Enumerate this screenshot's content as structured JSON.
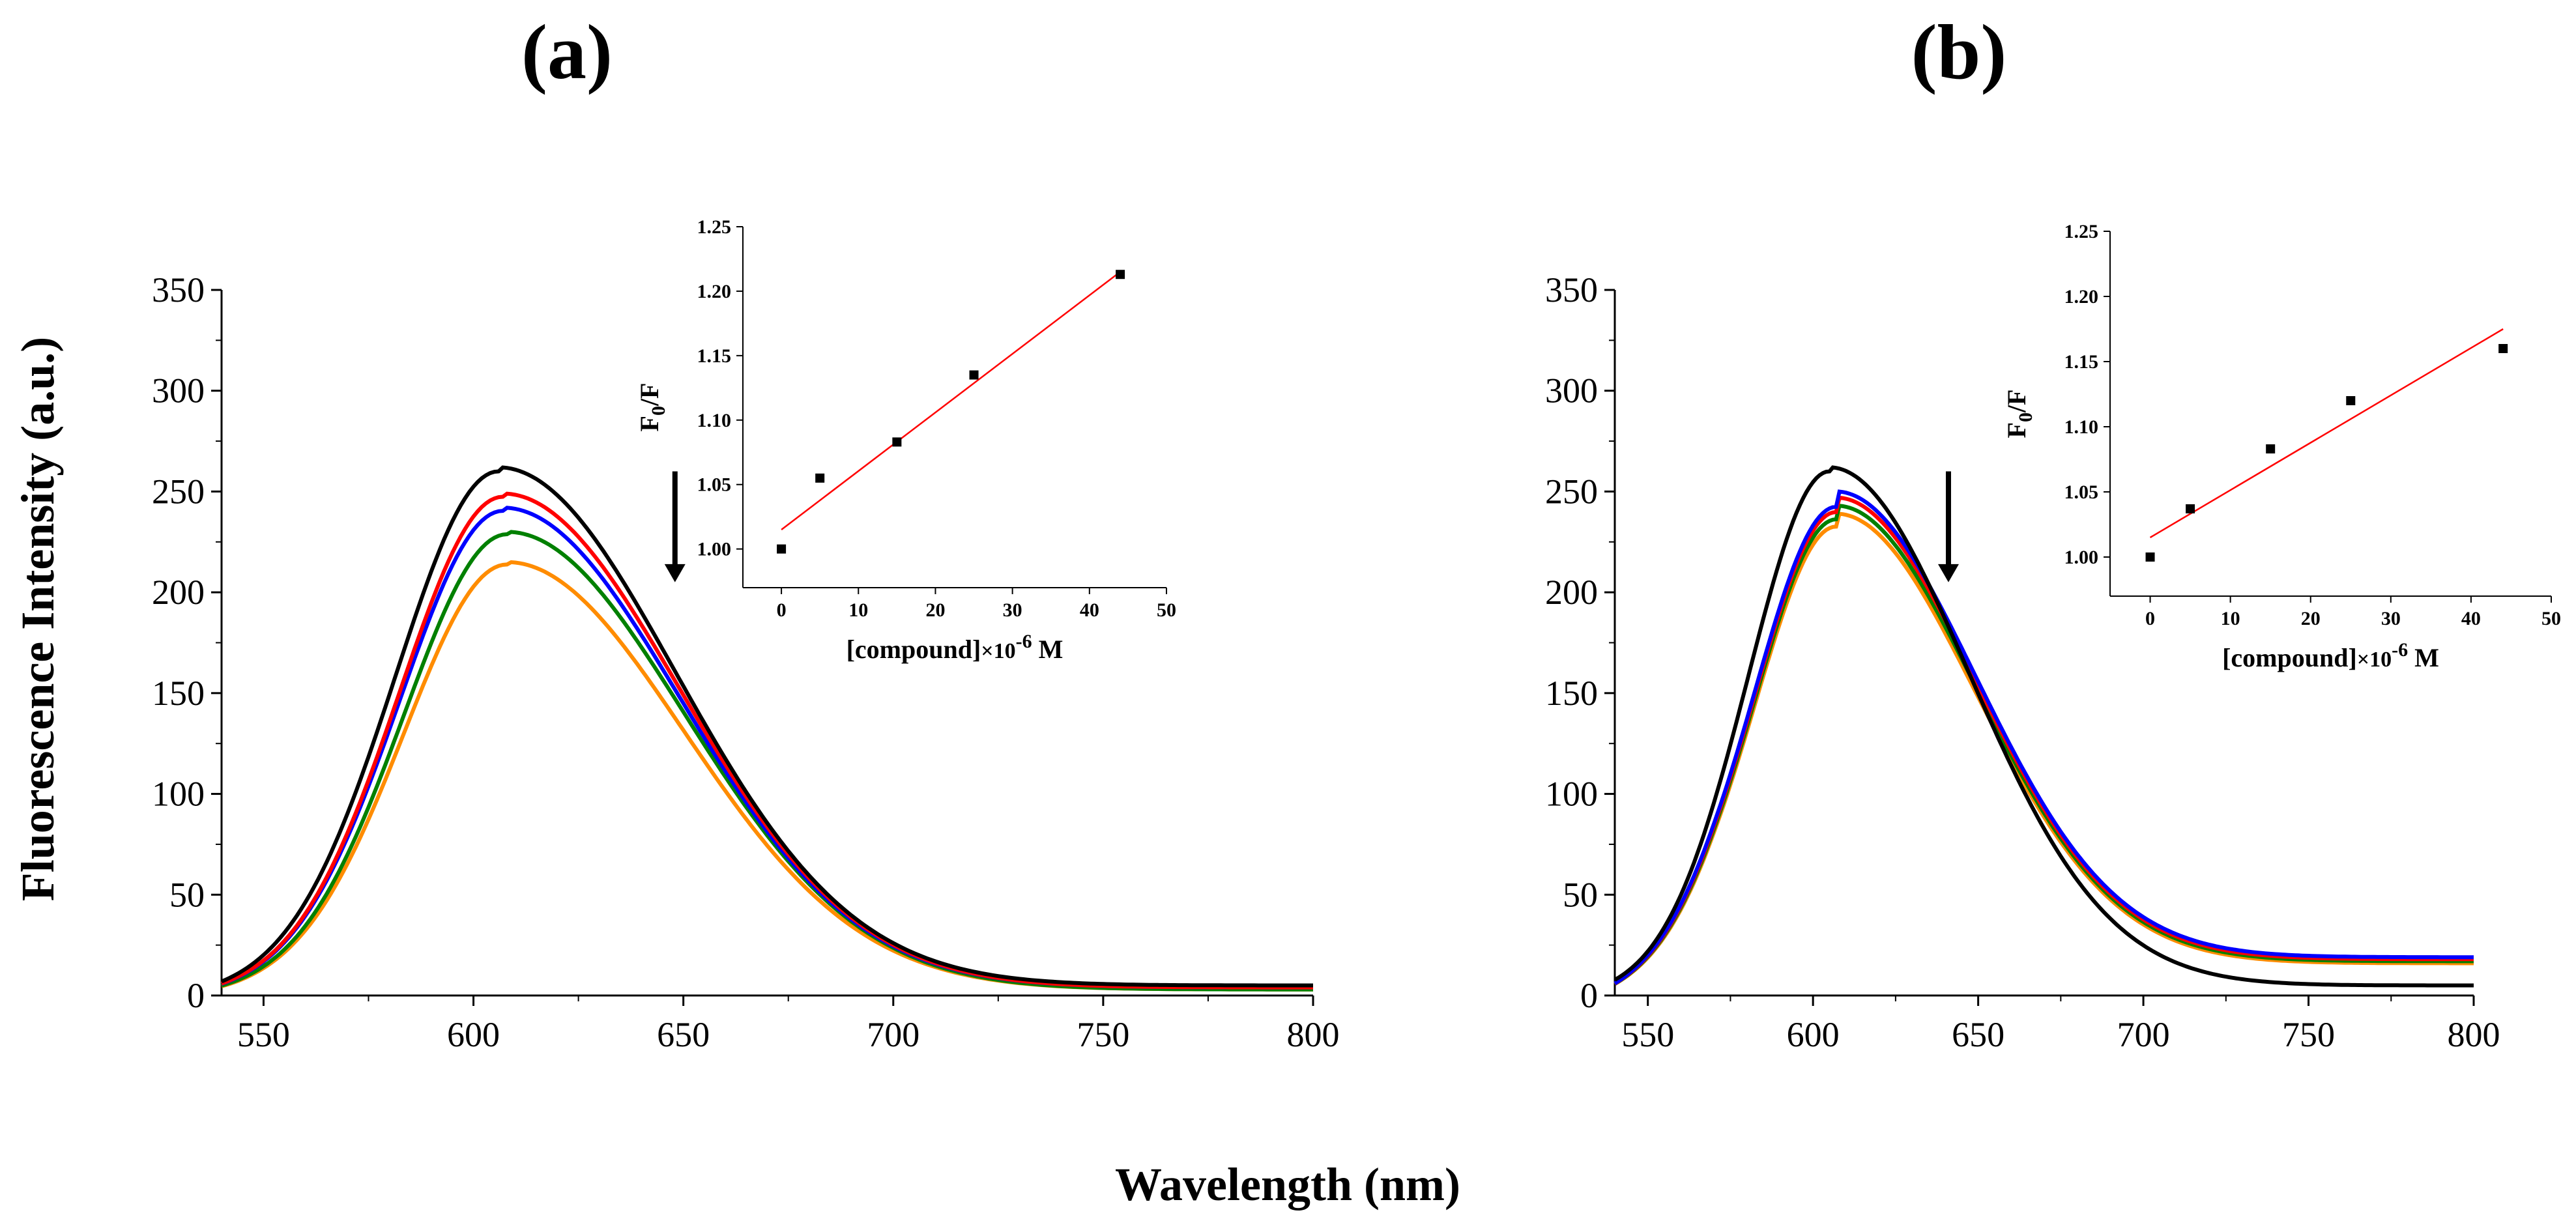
{
  "figure": {
    "shared_ylabel": "Fluorescence Intensity (a.u.)",
    "shared_xlabel": "Wavelength (nm)"
  },
  "chart_data": [
    {
      "type": "line",
      "panel_label": "(a)",
      "xlim": [
        540,
        800
      ],
      "ylim": [
        0,
        350
      ],
      "xticks": [
        550,
        600,
        650,
        700,
        750,
        800
      ],
      "yticks": [
        0,
        50,
        100,
        150,
        200,
        250,
        300,
        350
      ],
      "arrow_x": 648,
      "series": [
        {
          "color": "#000000",
          "peak": 262,
          "center": 606,
          "tail": 5
        },
        {
          "color": "#ff0000",
          "peak": 249,
          "center": 607,
          "tail": 4
        },
        {
          "color": "#0000ff",
          "peak": 242,
          "center": 607,
          "tail": 4
        },
        {
          "color": "#008000",
          "peak": 230,
          "center": 608,
          "tail": 3
        },
        {
          "color": "#ff8c00",
          "peak": 215,
          "center": 608,
          "tail": 3
        }
      ],
      "inset": {
        "type": "scatter",
        "xlabel_pre": "[compound]",
        "xlabel_times": "×10",
        "xlabel_exp": "-6",
        "xlabel_unit": " M",
        "ylabel_main": "F",
        "ylabel_sub": "0",
        "ylabel_rest": "/F",
        "xlim": [
          -5,
          50
        ],
        "ylim": [
          0.97,
          1.25
        ],
        "xticks": [
          0,
          10,
          20,
          30,
          40,
          50
        ],
        "yticks": [
          1.0,
          1.05,
          1.1,
          1.15,
          1.2,
          1.25
        ],
        "points": [
          [
            0,
            1.0
          ],
          [
            5,
            1.055
          ],
          [
            15,
            1.083
          ],
          [
            25,
            1.135
          ],
          [
            44,
            1.213
          ]
        ],
        "fit": {
          "x": [
            0,
            44
          ],
          "y": [
            1.015,
            1.215
          ],
          "color": "#ff0000"
        }
      }
    },
    {
      "type": "line",
      "panel_label": "(b)",
      "xlim": [
        540,
        800
      ],
      "ylim": [
        0,
        350
      ],
      "xticks": [
        550,
        600,
        650,
        700,
        750,
        800
      ],
      "yticks": [
        0,
        50,
        100,
        150,
        200,
        250,
        300,
        350
      ],
      "arrow_x": 641,
      "series": [
        {
          "color": "#000000",
          "peak": 262,
          "center": 605,
          "tail": 5
        },
        {
          "color": "#0000ff",
          "peak": 250,
          "center": 607,
          "tail": 19
        },
        {
          "color": "#ff0000",
          "peak": 247,
          "center": 607,
          "tail": 18
        },
        {
          "color": "#008000",
          "peak": 243,
          "center": 607,
          "tail": 17
        },
        {
          "color": "#ff8c00",
          "peak": 239,
          "center": 607,
          "tail": 16
        }
      ],
      "inset": {
        "type": "scatter",
        "xlabel_pre": "[compound]",
        "xlabel_times": "×10",
        "xlabel_exp": "-6",
        "xlabel_unit": " M",
        "ylabel_main": "F",
        "ylabel_sub": "0",
        "ylabel_rest": "/F",
        "xlim": [
          -5,
          50
        ],
        "ylim": [
          0.97,
          1.25
        ],
        "xticks": [
          0,
          10,
          20,
          30,
          40,
          50
        ],
        "yticks": [
          1.0,
          1.05,
          1.1,
          1.15,
          1.2,
          1.25
        ],
        "points": [
          [
            0,
            1.0
          ],
          [
            5,
            1.037
          ],
          [
            15,
            1.083
          ],
          [
            25,
            1.12
          ],
          [
            44,
            1.16
          ]
        ],
        "fit": {
          "x": [
            0,
            44
          ],
          "y": [
            1.015,
            1.175
          ],
          "color": "#ff0000"
        }
      }
    }
  ]
}
